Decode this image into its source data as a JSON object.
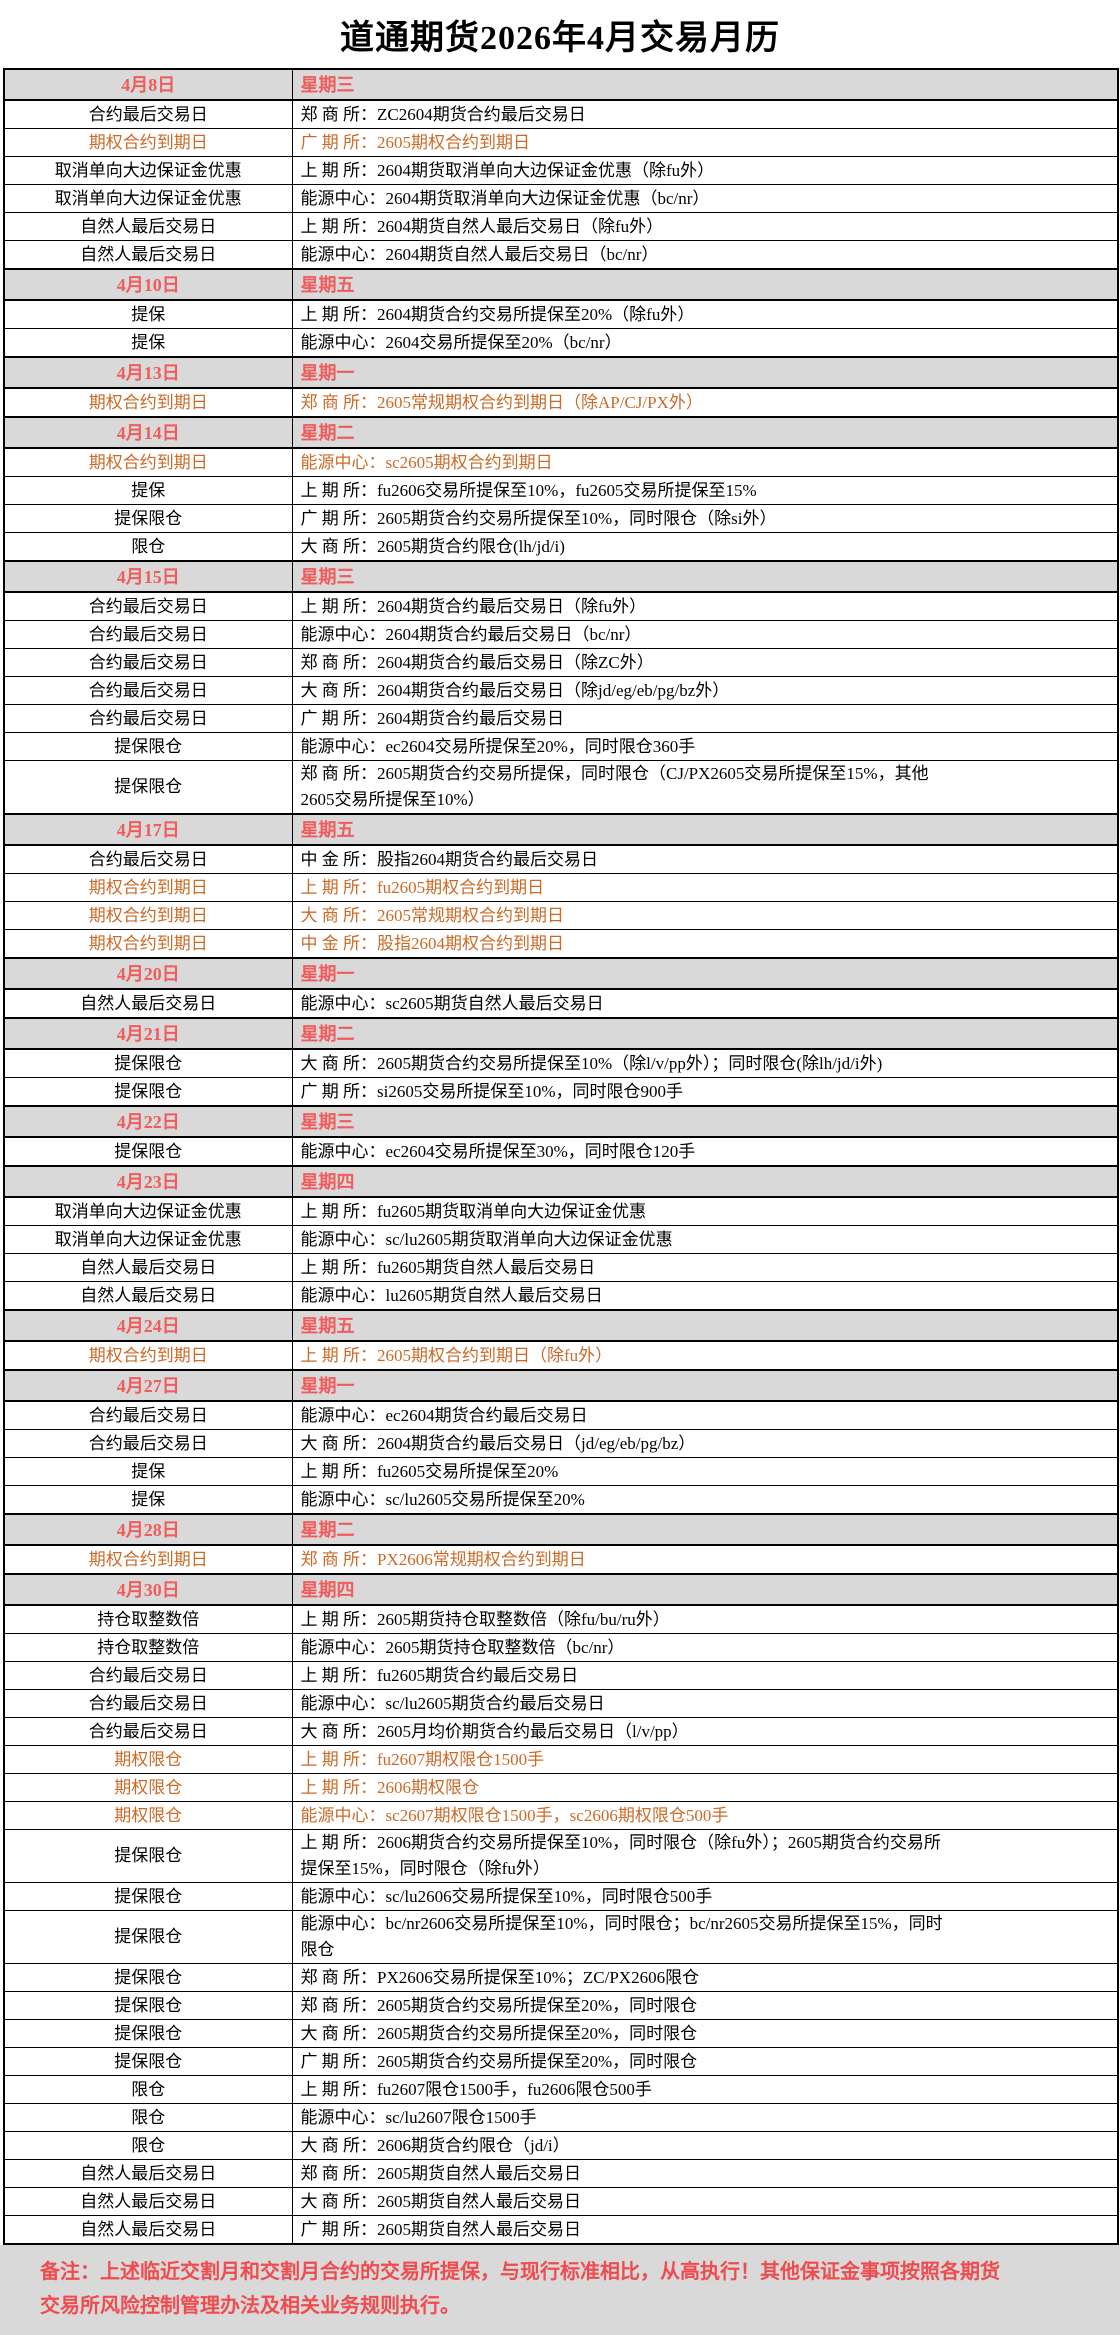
{
  "title": "道通期货2026年4月交易月历",
  "colors": {
    "section_bg": "#d9d9d9",
    "header_text": "#f15b5b",
    "highlight_text": "#cb6a27",
    "note_text": "#f04b4e",
    "border": "#000000"
  },
  "table": {
    "sections": [
      {
        "date": "4月8日",
        "weekday": "星期三",
        "rows": [
          {
            "event": "合约最后交易日",
            "detail": "郑 商 所：ZC2604期货合约最后交易日",
            "highlight": false
          },
          {
            "event": "期权合约到期日",
            "detail": "广 期 所：2605期权合约到期日",
            "highlight": true
          },
          {
            "event": "取消单向大边保证金优惠",
            "detail": "上 期 所：2604期货取消单向大边保证金优惠（除fu外）",
            "highlight": false
          },
          {
            "event": "取消单向大边保证金优惠",
            "detail": "能源中心：2604期货取消单向大边保证金优惠（bc/nr）",
            "highlight": false
          },
          {
            "event": "自然人最后交易日",
            "detail": "上 期 所：2604期货自然人最后交易日（除fu外）",
            "highlight": false
          },
          {
            "event": "自然人最后交易日",
            "detail": "能源中心：2604期货自然人最后交易日（bc/nr）",
            "highlight": false
          }
        ]
      },
      {
        "date": "4月10日",
        "weekday": "星期五",
        "rows": [
          {
            "event": "提保",
            "detail": "上 期 所：2604期货合约交易所提保至20%（除fu外）",
            "highlight": false
          },
          {
            "event": "提保",
            "detail": "能源中心：2604交易所提保至20%（bc/nr）",
            "highlight": false
          }
        ]
      },
      {
        "date": "4月13日",
        "weekday": "星期一",
        "rows": [
          {
            "event": "期权合约到期日",
            "detail": "郑 商 所：2605常规期权合约到期日（除AP/CJ/PX外）",
            "highlight": true
          }
        ]
      },
      {
        "date": "4月14日",
        "weekday": "星期二",
        "rows": [
          {
            "event": "期权合约到期日",
            "detail": "能源中心：sc2605期权合约到期日",
            "highlight": true
          },
          {
            "event": "提保",
            "detail": "上 期 所：fu2606交易所提保至10%，fu2605交易所提保至15%",
            "highlight": false
          },
          {
            "event": "提保限仓",
            "detail": "广 期 所：2605期货合约交易所提保至10%，同时限仓（除si外）",
            "highlight": false
          },
          {
            "event": "限仓",
            "detail": "大 商 所：2605期货合约限仓(lh/jd/i)",
            "highlight": false
          }
        ]
      },
      {
        "date": "4月15日",
        "weekday": "星期三",
        "rows": [
          {
            "event": "合约最后交易日",
            "detail": "上 期 所：2604期货合约最后交易日（除fu外）",
            "highlight": false
          },
          {
            "event": "合约最后交易日",
            "detail": "能源中心：2604期货合约最后交易日（bc/nr）",
            "highlight": false
          },
          {
            "event": "合约最后交易日",
            "detail": "郑 商 所：2604期货合约最后交易日（除ZC外）",
            "highlight": false
          },
          {
            "event": "合约最后交易日",
            "detail": "大 商 所：2604期货合约最后交易日（除jd/eg/eb/pg/bz外）",
            "highlight": false
          },
          {
            "event": "合约最后交易日",
            "detail": "广 期 所：2604期货合约最后交易日",
            "highlight": false
          },
          {
            "event": "提保限仓",
            "detail": "能源中心：ec2604交易所提保至20%，同时限仓360手",
            "highlight": false
          },
          {
            "event": "提保限仓",
            "detail": "郑 商 所：2605期货合约交易所提保，同时限仓（CJ/PX2605交易所提保至15%，其他\n2605交易所提保至10%）",
            "highlight": false
          }
        ]
      },
      {
        "date": "4月17日",
        "weekday": "星期五",
        "rows": [
          {
            "event": "合约最后交易日",
            "detail": "中 金 所：股指2604期货合约最后交易日",
            "highlight": false
          },
          {
            "event": "期权合约到期日",
            "detail": "上 期 所：fu2605期权合约到期日",
            "highlight": true
          },
          {
            "event": "期权合约到期日",
            "detail": "大 商 所：2605常规期权合约到期日",
            "highlight": true
          },
          {
            "event": "期权合约到期日",
            "detail": "中 金 所：股指2604期权合约到期日",
            "highlight": true
          }
        ]
      },
      {
        "date": "4月20日",
        "weekday": "星期一",
        "rows": [
          {
            "event": "自然人最后交易日",
            "detail": "能源中心：sc2605期货自然人最后交易日",
            "highlight": false
          }
        ]
      },
      {
        "date": "4月21日",
        "weekday": "星期二",
        "rows": [
          {
            "event": "提保限仓",
            "detail": "大 商 所：2605期货合约交易所提保至10%（除l/v/pp外）；同时限仓(除lh/jd/i外)",
            "highlight": false
          },
          {
            "event": "提保限仓",
            "detail": "广 期 所：si2605交易所提保至10%，同时限仓900手",
            "highlight": false
          }
        ]
      },
      {
        "date": "4月22日",
        "weekday": "星期三",
        "rows": [
          {
            "event": "提保限仓",
            "detail": "能源中心：ec2604交易所提保至30%，同时限仓120手",
            "highlight": false
          }
        ]
      },
      {
        "date": "4月23日",
        "weekday": "星期四",
        "rows": [
          {
            "event": "取消单向大边保证金优惠",
            "detail": "上 期 所：fu2605期货取消单向大边保证金优惠",
            "highlight": false
          },
          {
            "event": "取消单向大边保证金优惠",
            "detail": "能源中心：sc/lu2605期货取消单向大边保证金优惠",
            "highlight": false
          },
          {
            "event": "自然人最后交易日",
            "detail": "上 期 所：fu2605期货自然人最后交易日",
            "highlight": false
          },
          {
            "event": "自然人最后交易日",
            "detail": "能源中心：lu2605期货自然人最后交易日",
            "highlight": false
          }
        ]
      },
      {
        "date": "4月24日",
        "weekday": "星期五",
        "rows": [
          {
            "event": "期权合约到期日",
            "detail": "上 期 所：2605期权合约到期日（除fu外）",
            "highlight": true
          }
        ]
      },
      {
        "date": "4月27日",
        "weekday": "星期一",
        "rows": [
          {
            "event": "合约最后交易日",
            "detail": "能源中心：ec2604期货合约最后交易日",
            "highlight": false
          },
          {
            "event": "合约最后交易日",
            "detail": "大 商 所：2604期货合约最后交易日（jd/eg/eb/pg/bz）",
            "highlight": false
          },
          {
            "event": "提保",
            "detail": "上 期 所：fu2605交易所提保至20%",
            "highlight": false
          },
          {
            "event": "提保",
            "detail": "能源中心：sc/lu2605交易所提保至20%",
            "highlight": false
          }
        ]
      },
      {
        "date": "4月28日",
        "weekday": "星期二",
        "rows": [
          {
            "event": "期权合约到期日",
            "detail": "郑 商 所：PX2606常规期权合约到期日",
            "highlight": true
          }
        ]
      },
      {
        "date": "4月30日",
        "weekday": "星期四",
        "rows": [
          {
            "event": "持仓取整数倍",
            "detail": "上 期 所：2605期货持仓取整数倍（除fu/bu/ru外）",
            "highlight": false
          },
          {
            "event": "持仓取整数倍",
            "detail": "能源中心：2605期货持仓取整数倍（bc/nr）",
            "highlight": false
          },
          {
            "event": "合约最后交易日",
            "detail": "上 期 所：fu2605期货合约最后交易日",
            "highlight": false
          },
          {
            "event": "合约最后交易日",
            "detail": "能源中心：sc/lu2605期货合约最后交易日",
            "highlight": false
          },
          {
            "event": "合约最后交易日",
            "detail": "大 商 所：2605月均价期货合约最后交易日（l/v/pp）",
            "highlight": false
          },
          {
            "event": "期权限仓",
            "detail": "上 期 所：fu2607期权限仓1500手",
            "highlight": true
          },
          {
            "event": "期权限仓",
            "detail": "上 期 所：2606期权限仓",
            "highlight": true
          },
          {
            "event": "期权限仓",
            "detail": "能源中心：sc2607期权限仓1500手，sc2606期权限仓500手",
            "highlight": true
          },
          {
            "event": "提保限仓",
            "detail": "上 期 所：2606期货合约交易所提保至10%，同时限仓（除fu外）；2605期货合约交易所\n提保至15%，同时限仓（除fu外）",
            "highlight": false
          },
          {
            "event": "提保限仓",
            "detail": "能源中心：sc/lu2606交易所提保至10%，同时限仓500手",
            "highlight": false
          },
          {
            "event": "提保限仓",
            "detail": "能源中心：bc/nr2606交易所提保至10%，同时限仓；bc/nr2605交易所提保至15%，同时\n限仓",
            "highlight": false
          },
          {
            "event": "提保限仓",
            "detail": "郑 商 所：PX2606交易所提保至10%；ZC/PX2606限仓",
            "highlight": false
          },
          {
            "event": "提保限仓",
            "detail": "郑 商 所：2605期货合约交易所提保至20%，同时限仓",
            "highlight": false
          },
          {
            "event": "提保限仓",
            "detail": "大 商 所：2605期货合约交易所提保至20%，同时限仓",
            "highlight": false
          },
          {
            "event": "提保限仓",
            "detail": "广 期 所：2605期货合约交易所提保至20%，同时限仓",
            "highlight": false
          },
          {
            "event": "限仓",
            "detail": "上 期 所：fu2607限仓1500手，fu2606限仓500手",
            "highlight": false
          },
          {
            "event": "限仓",
            "detail": "能源中心：sc/lu2607限仓1500手",
            "highlight": false
          },
          {
            "event": "限仓",
            "detail": "大 商 所：2606期货合约限仓（jd/i）",
            "highlight": false
          },
          {
            "event": "自然人最后交易日",
            "detail": "郑 商 所：2605期货自然人最后交易日",
            "highlight": false
          },
          {
            "event": "自然人最后交易日",
            "detail": "大 商 所：2605期货自然人最后交易日",
            "highlight": false
          },
          {
            "event": "自然人最后交易日",
            "detail": "广 期 所：2605期货自然人最后交易日",
            "highlight": false
          }
        ]
      }
    ]
  },
  "note": "备注：上述临近交割月和交割月合约的交易所提保，与现行标准相比，从高执行！其他保证金事项按照各期货\n交易所风险控制管理办法及相关业务规则执行。"
}
